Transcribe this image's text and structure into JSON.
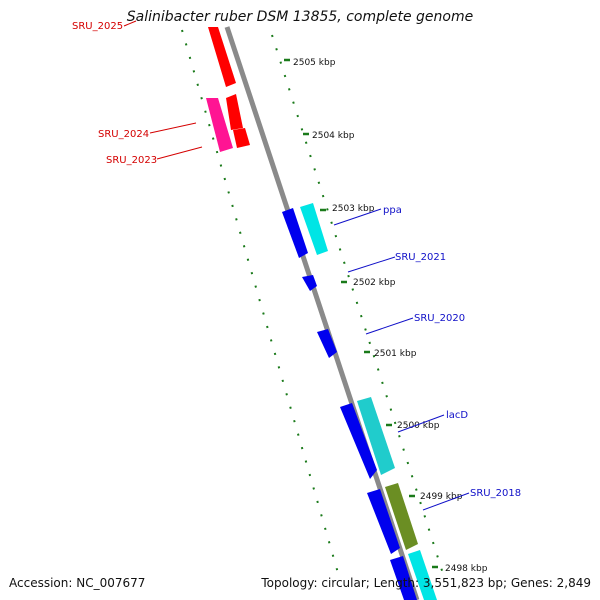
{
  "title": "Salinibacter ruber DSM 13855, complete genome",
  "footer": {
    "accession": "Accession: NC_007677",
    "summary": "Topology: circular; Length: 3,551,823 bp; Genes: 2,849"
  },
  "colors": {
    "backbone": "#8a8a8a",
    "tick": "#1a7a1a",
    "label_red": "#d40000",
    "label_blue": "#1010c8",
    "red": "#ff0000",
    "magenta": "#ff1493",
    "blue": "#0000ee",
    "cyan": "#00e5e5",
    "olive": "#6b8e23"
  },
  "ticks": [
    "2505 kbp",
    "2504 kbp",
    "2503 kbp",
    "2502 kbp",
    "2501 kbp",
    "2500 kbp",
    "2499 kbp",
    "2498 kbp"
  ],
  "gene_labels": [
    {
      "name": "SRU_2025",
      "color": "red"
    },
    {
      "name": "SRU_2024",
      "color": "red"
    },
    {
      "name": "SRU_2023",
      "color": "red"
    },
    {
      "name": "ppa",
      "color": "blue"
    },
    {
      "name": "SRU_2021",
      "color": "blue"
    },
    {
      "name": "SRU_2020",
      "color": "blue"
    },
    {
      "name": "lacD",
      "color": "blue"
    },
    {
      "name": "SRU_2018",
      "color": "blue"
    }
  ]
}
